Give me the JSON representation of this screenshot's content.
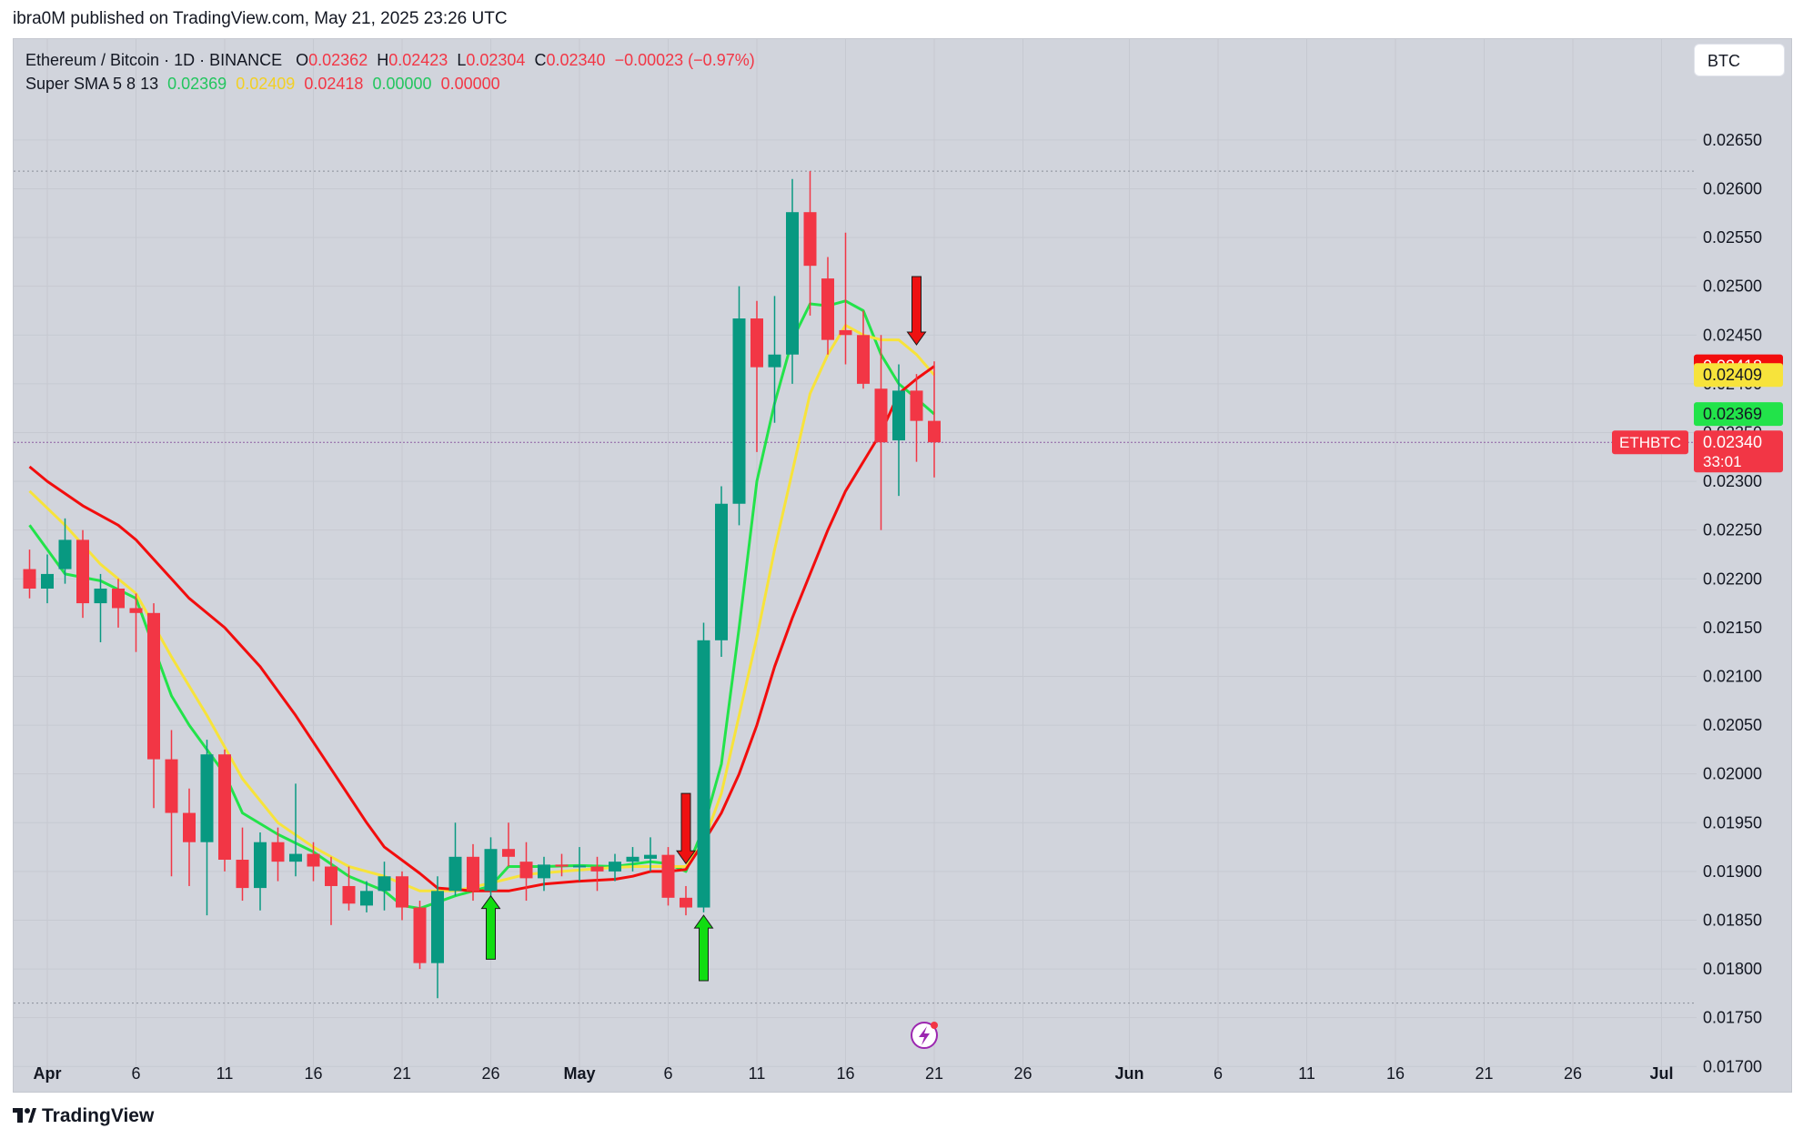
{
  "header": {
    "published": "ibra0M published on TradingView.com, May 21, 2025 23:26 UTC"
  },
  "legend": {
    "symbol": "Ethereum / Bitcoin · 1D · BINANCE",
    "o_label": "O",
    "o_value": "0.02362",
    "h_label": "H",
    "h_value": "0.02423",
    "l_label": "L",
    "l_value": "0.02304",
    "c_label": "C",
    "c_value": "0.02340",
    "change": "−0.00023 (−0.97%)",
    "indicator": "Super SMA 5 8 13",
    "sma5": "0.02369",
    "sma8": "0.02409",
    "sma13": "0.02418",
    "extra1": "0.00000",
    "extra2": "0.00000"
  },
  "currency": "BTC",
  "footer": {
    "brand": "TradingView"
  },
  "colors": {
    "background": "#d1d4dc",
    "up": "#089981",
    "down": "#f23645",
    "sma5": "#22e34a",
    "sma8": "#f7e33b",
    "sma13": "#f20d0d",
    "signal_up": "#11dd11",
    "signal_down": "#ee1111"
  },
  "chart_data": {
    "type": "candlestick",
    "title": "Ethereum / Bitcoin · 1D · BINANCE",
    "ylim": [
      0.0168,
      0.0272
    ],
    "y_ticks": [
      "0.02650",
      "0.02600",
      "0.02550",
      "0.02500",
      "0.02450",
      "0.02400",
      "0.02350",
      "0.02300",
      "0.02250",
      "0.02200",
      "0.02150",
      "0.02100",
      "0.02050",
      "0.02000",
      "0.01950",
      "0.01900",
      "0.01850",
      "0.01800",
      "0.01750",
      "0.01700"
    ],
    "x_ticks": [
      {
        "label": "Apr",
        "date": "2025-04-01",
        "bold": true
      },
      {
        "label": "6",
        "date": "2025-04-06"
      },
      {
        "label": "11",
        "date": "2025-04-11"
      },
      {
        "label": "16",
        "date": "2025-04-16"
      },
      {
        "label": "21",
        "date": "2025-04-21"
      },
      {
        "label": "26",
        "date": "2025-04-26"
      },
      {
        "label": "May",
        "date": "2025-05-01",
        "bold": true
      },
      {
        "label": "6",
        "date": "2025-05-06"
      },
      {
        "label": "11",
        "date": "2025-05-11"
      },
      {
        "label": "16",
        "date": "2025-05-16"
      },
      {
        "label": "21",
        "date": "2025-05-21"
      },
      {
        "label": "26",
        "date": "2025-05-26"
      },
      {
        "label": "Jun",
        "date": "2025-06-01",
        "bold": true
      },
      {
        "label": "6",
        "date": "2025-06-06"
      },
      {
        "label": "11",
        "date": "2025-06-11"
      },
      {
        "label": "16",
        "date": "2025-06-16"
      },
      {
        "label": "21",
        "date": "2025-06-21"
      },
      {
        "label": "26",
        "date": "2025-06-26"
      },
      {
        "label": "Jul",
        "date": "2025-07-01",
        "bold": true
      }
    ],
    "candles": [
      {
        "date": "2025-03-31",
        "o": 0.0221,
        "h": 0.0223,
        "l": 0.0218,
        "c": 0.0219
      },
      {
        "date": "2025-04-01",
        "o": 0.0219,
        "h": 0.02225,
        "l": 0.02175,
        "c": 0.02205
      },
      {
        "date": "2025-04-02",
        "o": 0.0221,
        "h": 0.02262,
        "l": 0.02195,
        "c": 0.0224
      },
      {
        "date": "2025-04-03",
        "o": 0.0224,
        "h": 0.0225,
        "l": 0.0216,
        "c": 0.02175
      },
      {
        "date": "2025-04-04",
        "o": 0.02175,
        "h": 0.02205,
        "l": 0.02135,
        "c": 0.0219
      },
      {
        "date": "2025-04-05",
        "o": 0.0219,
        "h": 0.022,
        "l": 0.0215,
        "c": 0.0217
      },
      {
        "date": "2025-04-06",
        "o": 0.0217,
        "h": 0.02185,
        "l": 0.02125,
        "c": 0.02165
      },
      {
        "date": "2025-04-07",
        "o": 0.02165,
        "h": 0.02175,
        "l": 0.01965,
        "c": 0.02015
      },
      {
        "date": "2025-04-08",
        "o": 0.02015,
        "h": 0.02045,
        "l": 0.01895,
        "c": 0.0196
      },
      {
        "date": "2025-04-09",
        "o": 0.0196,
        "h": 0.01985,
        "l": 0.01885,
        "c": 0.0193
      },
      {
        "date": "2025-04-10",
        "o": 0.0193,
        "h": 0.02035,
        "l": 0.01855,
        "c": 0.0202
      },
      {
        "date": "2025-04-11",
        "o": 0.0202,
        "h": 0.02025,
        "l": 0.019,
        "c": 0.01912
      },
      {
        "date": "2025-04-12",
        "o": 0.01912,
        "h": 0.01945,
        "l": 0.0187,
        "c": 0.01883
      },
      {
        "date": "2025-04-13",
        "o": 0.01883,
        "h": 0.0194,
        "l": 0.0186,
        "c": 0.0193
      },
      {
        "date": "2025-04-14",
        "o": 0.0193,
        "h": 0.01945,
        "l": 0.0189,
        "c": 0.0191
      },
      {
        "date": "2025-04-15",
        "o": 0.0191,
        "h": 0.0199,
        "l": 0.01895,
        "c": 0.01918
      },
      {
        "date": "2025-04-16",
        "o": 0.01918,
        "h": 0.0193,
        "l": 0.0189,
        "c": 0.01905
      },
      {
        "date": "2025-04-17",
        "o": 0.01905,
        "h": 0.01915,
        "l": 0.01845,
        "c": 0.01885
      },
      {
        "date": "2025-04-18",
        "o": 0.01885,
        "h": 0.01905,
        "l": 0.0186,
        "c": 0.01867
      },
      {
        "date": "2025-04-19",
        "o": 0.01865,
        "h": 0.0189,
        "l": 0.01858,
        "c": 0.0188
      },
      {
        "date": "2025-04-20",
        "o": 0.0188,
        "h": 0.0191,
        "l": 0.0186,
        "c": 0.01895
      },
      {
        "date": "2025-04-21",
        "o": 0.01895,
        "h": 0.019,
        "l": 0.0185,
        "c": 0.01863
      },
      {
        "date": "2025-04-22",
        "o": 0.01863,
        "h": 0.0187,
        "l": 0.018,
        "c": 0.01806
      },
      {
        "date": "2025-04-23",
        "o": 0.01806,
        "h": 0.01895,
        "l": 0.0177,
        "c": 0.0188
      },
      {
        "date": "2025-04-24",
        "o": 0.0188,
        "h": 0.0195,
        "l": 0.01875,
        "c": 0.01915
      },
      {
        "date": "2025-04-25",
        "o": 0.01915,
        "h": 0.01928,
        "l": 0.0187,
        "c": 0.0188
      },
      {
        "date": "2025-04-26",
        "o": 0.0188,
        "h": 0.01935,
        "l": 0.01875,
        "c": 0.01923
      },
      {
        "date": "2025-04-27",
        "o": 0.01923,
        "h": 0.0195,
        "l": 0.01905,
        "c": 0.01915
      },
      {
        "date": "2025-04-28",
        "o": 0.0191,
        "h": 0.0193,
        "l": 0.0187,
        "c": 0.01893
      },
      {
        "date": "2025-04-29",
        "o": 0.01893,
        "h": 0.01915,
        "l": 0.0188,
        "c": 0.01907
      },
      {
        "date": "2025-04-30",
        "o": 0.01907,
        "h": 0.01918,
        "l": 0.01895,
        "c": 0.01905
      },
      {
        "date": "2025-05-01",
        "o": 0.01905,
        "h": 0.01925,
        "l": 0.0189,
        "c": 0.01906
      },
      {
        "date": "2025-05-02",
        "o": 0.01905,
        "h": 0.01915,
        "l": 0.0188,
        "c": 0.019
      },
      {
        "date": "2025-05-03",
        "o": 0.019,
        "h": 0.01918,
        "l": 0.0189,
        "c": 0.0191
      },
      {
        "date": "2025-05-04",
        "o": 0.0191,
        "h": 0.01925,
        "l": 0.019,
        "c": 0.01915
      },
      {
        "date": "2025-05-05",
        "o": 0.01913,
        "h": 0.01935,
        "l": 0.019,
        "c": 0.01917
      },
      {
        "date": "2025-05-06",
        "o": 0.01917,
        "h": 0.01925,
        "l": 0.01865,
        "c": 0.01873
      },
      {
        "date": "2025-05-07",
        "o": 0.01873,
        "h": 0.01885,
        "l": 0.01855,
        "c": 0.01863
      },
      {
        "date": "2025-05-08",
        "o": 0.01863,
        "h": 0.02155,
        "l": 0.01858,
        "c": 0.02137
      },
      {
        "date": "2025-05-09",
        "o": 0.02137,
        "h": 0.02295,
        "l": 0.0212,
        "c": 0.02277
      },
      {
        "date": "2025-05-10",
        "o": 0.02277,
        "h": 0.025,
        "l": 0.02255,
        "c": 0.02467
      },
      {
        "date": "2025-05-11",
        "o": 0.02467,
        "h": 0.02485,
        "l": 0.0233,
        "c": 0.02417
      },
      {
        "date": "2025-05-12",
        "o": 0.02417,
        "h": 0.0249,
        "l": 0.0236,
        "c": 0.0243
      },
      {
        "date": "2025-05-13",
        "o": 0.0243,
        "h": 0.0261,
        "l": 0.024,
        "c": 0.02576
      },
      {
        "date": "2025-05-14",
        "o": 0.02576,
        "h": 0.02618,
        "l": 0.0247,
        "c": 0.02521
      },
      {
        "date": "2025-05-15",
        "o": 0.02508,
        "h": 0.0253,
        "l": 0.0243,
        "c": 0.02445
      },
      {
        "date": "2025-05-16",
        "o": 0.02455,
        "h": 0.02555,
        "l": 0.0242,
        "c": 0.0245
      },
      {
        "date": "2025-05-17",
        "o": 0.0245,
        "h": 0.02475,
        "l": 0.02395,
        "c": 0.024
      },
      {
        "date": "2025-05-18",
        "o": 0.02395,
        "h": 0.0245,
        "l": 0.0225,
        "c": 0.0234
      },
      {
        "date": "2025-05-19",
        "o": 0.02342,
        "h": 0.0242,
        "l": 0.02285,
        "c": 0.02393
      },
      {
        "date": "2025-05-20",
        "o": 0.02393,
        "h": 0.0241,
        "l": 0.0232,
        "c": 0.02362
      },
      {
        "date": "2025-05-21",
        "o": 0.02362,
        "h": 0.02423,
        "l": 0.02304,
        "c": 0.0234
      }
    ],
    "series": [
      {
        "name": "SMA 5",
        "color": "#22e34a",
        "points": [
          [
            "2025-03-31",
            0.02255
          ],
          [
            "2025-04-02",
            0.02205
          ],
          [
            "2025-04-04",
            0.02198
          ],
          [
            "2025-04-06",
            0.0218
          ],
          [
            "2025-04-08",
            0.0208
          ],
          [
            "2025-04-09",
            0.0205
          ],
          [
            "2025-04-11",
            0.02
          ],
          [
            "2025-04-12",
            0.0196
          ],
          [
            "2025-04-14",
            0.01938
          ],
          [
            "2025-04-16",
            0.0192
          ],
          [
            "2025-04-18",
            0.01895
          ],
          [
            "2025-04-20",
            0.0188
          ],
          [
            "2025-04-21",
            0.01865
          ],
          [
            "2025-04-22",
            0.01862
          ],
          [
            "2025-04-24",
            0.01875
          ],
          [
            "2025-04-26",
            0.01885
          ],
          [
            "2025-04-27",
            0.01905
          ],
          [
            "2025-04-29",
            0.01905
          ],
          [
            "2025-05-01",
            0.01906
          ],
          [
            "2025-05-03",
            0.01905
          ],
          [
            "2025-05-05",
            0.0191
          ],
          [
            "2025-05-06",
            0.01908
          ],
          [
            "2025-05-07",
            0.019
          ],
          [
            "2025-05-08",
            0.01945
          ],
          [
            "2025-05-09",
            0.0201
          ],
          [
            "2025-05-10",
            0.0215
          ],
          [
            "2025-05-11",
            0.023
          ],
          [
            "2025-05-12",
            0.0238
          ],
          [
            "2025-05-13",
            0.02445
          ],
          [
            "2025-05-14",
            0.02482
          ],
          [
            "2025-05-15",
            0.0248
          ],
          [
            "2025-05-16",
            0.02485
          ],
          [
            "2025-05-17",
            0.02475
          ],
          [
            "2025-05-18",
            0.0243
          ],
          [
            "2025-05-19",
            0.024
          ],
          [
            "2025-05-20",
            0.02385
          ],
          [
            "2025-05-21",
            0.02369
          ]
        ]
      },
      {
        "name": "SMA 8",
        "color": "#f7e33b",
        "points": [
          [
            "2025-03-31",
            0.0229
          ],
          [
            "2025-04-02",
            0.02255
          ],
          [
            "2025-04-04",
            0.02215
          ],
          [
            "2025-04-06",
            0.02185
          ],
          [
            "2025-04-08",
            0.0212
          ],
          [
            "2025-04-10",
            0.0206
          ],
          [
            "2025-04-12",
            0.01995
          ],
          [
            "2025-04-14",
            0.0195
          ],
          [
            "2025-04-16",
            0.01925
          ],
          [
            "2025-04-18",
            0.01905
          ],
          [
            "2025-04-20",
            0.01895
          ],
          [
            "2025-04-22",
            0.0188
          ],
          [
            "2025-04-24",
            0.0188
          ],
          [
            "2025-04-26",
            0.01888
          ],
          [
            "2025-04-28",
            0.01897
          ],
          [
            "2025-04-30",
            0.019
          ],
          [
            "2025-05-02",
            0.01903
          ],
          [
            "2025-05-04",
            0.01905
          ],
          [
            "2025-05-06",
            0.01905
          ],
          [
            "2025-05-07",
            0.01905
          ],
          [
            "2025-05-08",
            0.0193
          ],
          [
            "2025-05-09",
            0.0198
          ],
          [
            "2025-05-10",
            0.0206
          ],
          [
            "2025-05-11",
            0.0214
          ],
          [
            "2025-05-12",
            0.0223
          ],
          [
            "2025-05-13",
            0.0231
          ],
          [
            "2025-05-14",
            0.0239
          ],
          [
            "2025-05-15",
            0.0243
          ],
          [
            "2025-05-16",
            0.0246
          ],
          [
            "2025-05-17",
            0.0245
          ],
          [
            "2025-05-18",
            0.02445
          ],
          [
            "2025-05-19",
            0.02445
          ],
          [
            "2025-05-20",
            0.0243
          ],
          [
            "2025-05-21",
            0.02409
          ]
        ]
      },
      {
        "name": "SMA 13",
        "color": "#f20d0d",
        "points": [
          [
            "2025-03-31",
            0.02315
          ],
          [
            "2025-04-01",
            0.023
          ],
          [
            "2025-04-03",
            0.02275
          ],
          [
            "2025-04-05",
            0.02255
          ],
          [
            "2025-04-06",
            0.0224
          ],
          [
            "2025-04-08",
            0.022
          ],
          [
            "2025-04-09",
            0.0218
          ],
          [
            "2025-04-11",
            0.0215
          ],
          [
            "2025-04-13",
            0.0211
          ],
          [
            "2025-04-15",
            0.0206
          ],
          [
            "2025-04-17",
            0.02005
          ],
          [
            "2025-04-19",
            0.0195
          ],
          [
            "2025-04-20",
            0.01925
          ],
          [
            "2025-04-22",
            0.01898
          ],
          [
            "2025-04-23",
            0.01883
          ],
          [
            "2025-04-25",
            0.0188
          ],
          [
            "2025-04-27",
            0.0188
          ],
          [
            "2025-04-29",
            0.01887
          ],
          [
            "2025-05-01",
            0.0189
          ],
          [
            "2025-05-03",
            0.01892
          ],
          [
            "2025-05-04",
            0.01895
          ],
          [
            "2025-05-05",
            0.019
          ],
          [
            "2025-05-06",
            0.019
          ],
          [
            "2025-05-07",
            0.01902
          ],
          [
            "2025-05-08",
            0.0193
          ],
          [
            "2025-05-09",
            0.0196
          ],
          [
            "2025-05-10",
            0.02
          ],
          [
            "2025-05-11",
            0.0205
          ],
          [
            "2025-05-12",
            0.0211
          ],
          [
            "2025-05-13",
            0.0216
          ],
          [
            "2025-05-14",
            0.02205
          ],
          [
            "2025-05-15",
            0.0225
          ],
          [
            "2025-05-16",
            0.0229
          ],
          [
            "2025-05-17",
            0.0232
          ],
          [
            "2025-05-18",
            0.0235
          ],
          [
            "2025-05-19",
            0.0239
          ],
          [
            "2025-05-20",
            0.02405
          ],
          [
            "2025-05-21",
            0.02418
          ]
        ]
      }
    ],
    "signals": [
      {
        "type": "buy",
        "date": "2025-04-26",
        "from": 0.0181,
        "to": 0.01875
      },
      {
        "type": "sell",
        "date": "2025-05-07",
        "from": 0.0198,
        "to": 0.01908
      },
      {
        "type": "buy",
        "date": "2025-05-08",
        "from": 0.01788,
        "to": 0.01855
      },
      {
        "type": "sell",
        "date": "2025-05-20",
        "from": 0.0251,
        "to": 0.0244
      }
    ],
    "ref_lines": [
      0.02618,
      0.01765
    ],
    "last_price": 0.0234,
    "price_labels": [
      {
        "text": "0.02418",
        "value": 0.02418,
        "bg": "#f20d0d",
        "fg": "#ffffff"
      },
      {
        "text": "0.02409",
        "value": 0.02409,
        "bg": "#f7e33b",
        "fg": "#131722"
      },
      {
        "text": "0.02369",
        "value": 0.02369,
        "bg": "#22e34a",
        "fg": "#131722"
      },
      {
        "text": "0.02340",
        "sub": "33:01",
        "value": 0.0234,
        "bg": "#f23645",
        "fg": "#ffffff"
      }
    ],
    "symbol_tag": "ETHBTC"
  }
}
